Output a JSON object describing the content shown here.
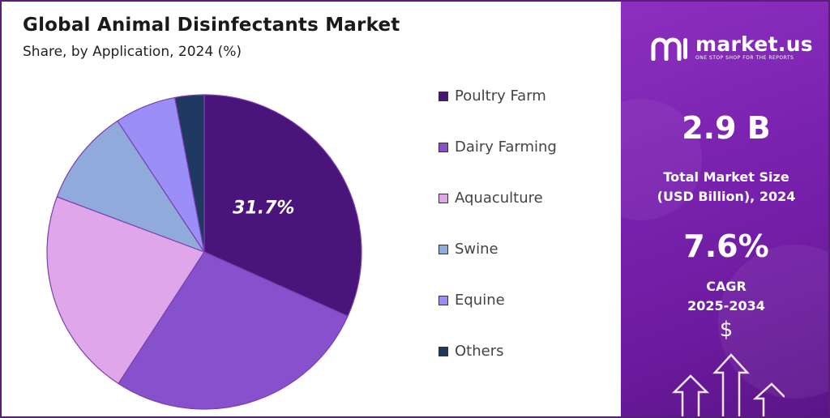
{
  "header": {
    "title": "Global Animal Disinfectants Market",
    "subtitle": "Share, by Application, 2024 (%)"
  },
  "chart_data": {
    "type": "pie",
    "title": "Global Animal Disinfectants Market",
    "subtitle": "Share, by Application, 2024 (%)",
    "categories": [
      "Poultry Farm",
      "Dairy Farming",
      "Aquaculture",
      "Swine",
      "Equine",
      "Others"
    ],
    "values": [
      31.7,
      27.5,
      21.5,
      10.0,
      6.3,
      3.0
    ],
    "colors": [
      "#4a157b",
      "#8750cc",
      "#dfa7ea",
      "#8faadb",
      "#9b8ff7",
      "#1f3960"
    ],
    "data_labels": [
      {
        "category": "Poultry Farm",
        "text": "31.7%"
      }
    ],
    "legend_position": "right"
  },
  "legend": {
    "items": [
      {
        "label": "Poultry Farm",
        "color": "#4a157b"
      },
      {
        "label": "Dairy Farming",
        "color": "#8750cc"
      },
      {
        "label": "Aquaculture",
        "color": "#dfa7ea"
      },
      {
        "label": "Swine",
        "color": "#8faadb"
      },
      {
        "label": "Equine",
        "color": "#9b8ff7"
      },
      {
        "label": "Others",
        "color": "#1f3960"
      }
    ]
  },
  "brand": {
    "name": "market.us",
    "tagline": "ONE STOP SHOP FOR THE REPORTS",
    "logo_icon": "market-us-logo-icon"
  },
  "stats": {
    "market_size_value": "2.9 B",
    "market_size_label_line1": "Total Market Size",
    "market_size_label_line2": "(USD Billion), 2024",
    "cagr_value": "7.6%",
    "cagr_label_line1": "CAGR",
    "cagr_label_line2": "2025-2034",
    "currency_symbol": "$"
  },
  "colors": {
    "panel_accent": "#7a22b0",
    "border": "#5a1e7a"
  }
}
